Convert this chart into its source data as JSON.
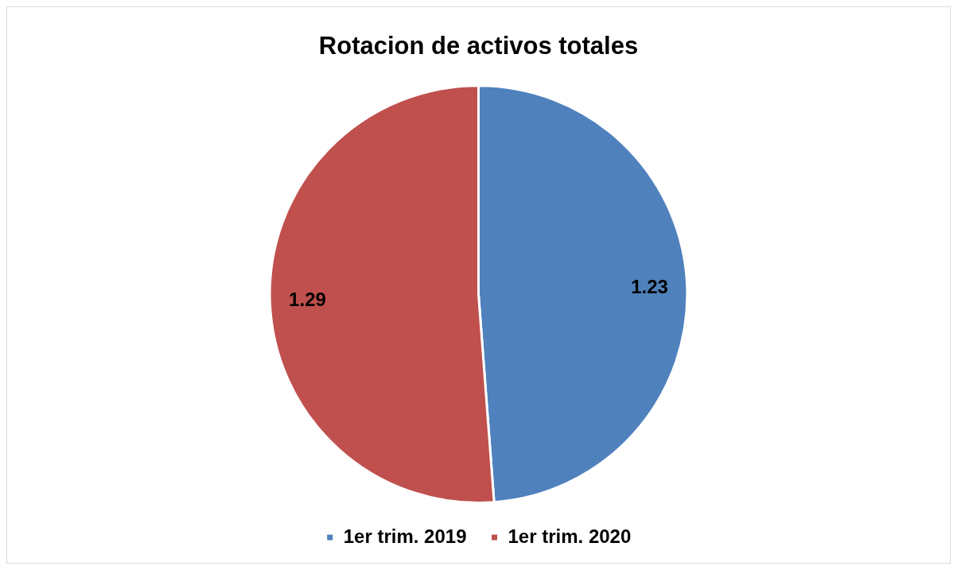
{
  "chart_data": {
    "type": "pie",
    "title": "Rotacion de activos totales",
    "categories": [
      "1er trim. 2019",
      "1er trim. 2020"
    ],
    "values": [
      1.23,
      1.29
    ],
    "colors": [
      "#4f81bd",
      "#c0504d"
    ],
    "data_labels": true,
    "legend": "bottom"
  }
}
